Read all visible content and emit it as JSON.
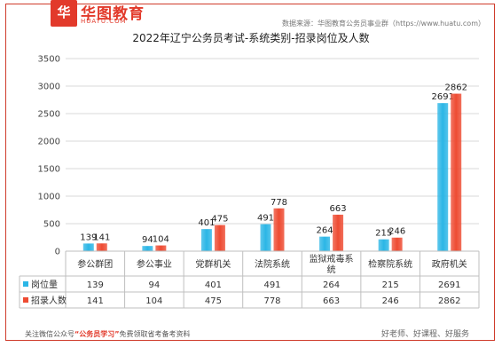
{
  "header": {
    "logo_badge": "华",
    "logo_text": "华图教育",
    "logo_sub": "HUATU.COM",
    "source": "数据来源：华图教育公务员事业群（https://www.huatu.com）"
  },
  "footer": {
    "left_prefix": "关注微信公众号",
    "left_highlight": "“公务员学习”",
    "left_suffix": "免费领取省考备考资料",
    "right": "好老师、好课程、好服务"
  },
  "colors": {
    "series_1": "#2bb6e6",
    "series_2": "#ee4b32",
    "grid": "#d9d9d9",
    "table_border": "#bfbfbf"
  },
  "chart_data": {
    "type": "bar",
    "title": "2022年辽宁公务员考试-系统类别-招录岗位及人数",
    "categories": [
      "参公群团",
      "参公事业",
      "党群机关",
      "法院系统",
      "监狱戒毒系统",
      "检察院系统",
      "政府机关"
    ],
    "series": [
      {
        "name": "岗位量",
        "values": [
          139,
          94,
          401,
          491,
          264,
          215,
          2691
        ]
      },
      {
        "name": "招录人数",
        "values": [
          141,
          104,
          475,
          778,
          663,
          246,
          2862
        ]
      }
    ],
    "ylim": [
      0,
      3500
    ],
    "yticks": [
      0,
      500,
      1000,
      1500,
      2000,
      2500,
      3000,
      3500
    ],
    "grid": true,
    "legend": "data-table"
  }
}
